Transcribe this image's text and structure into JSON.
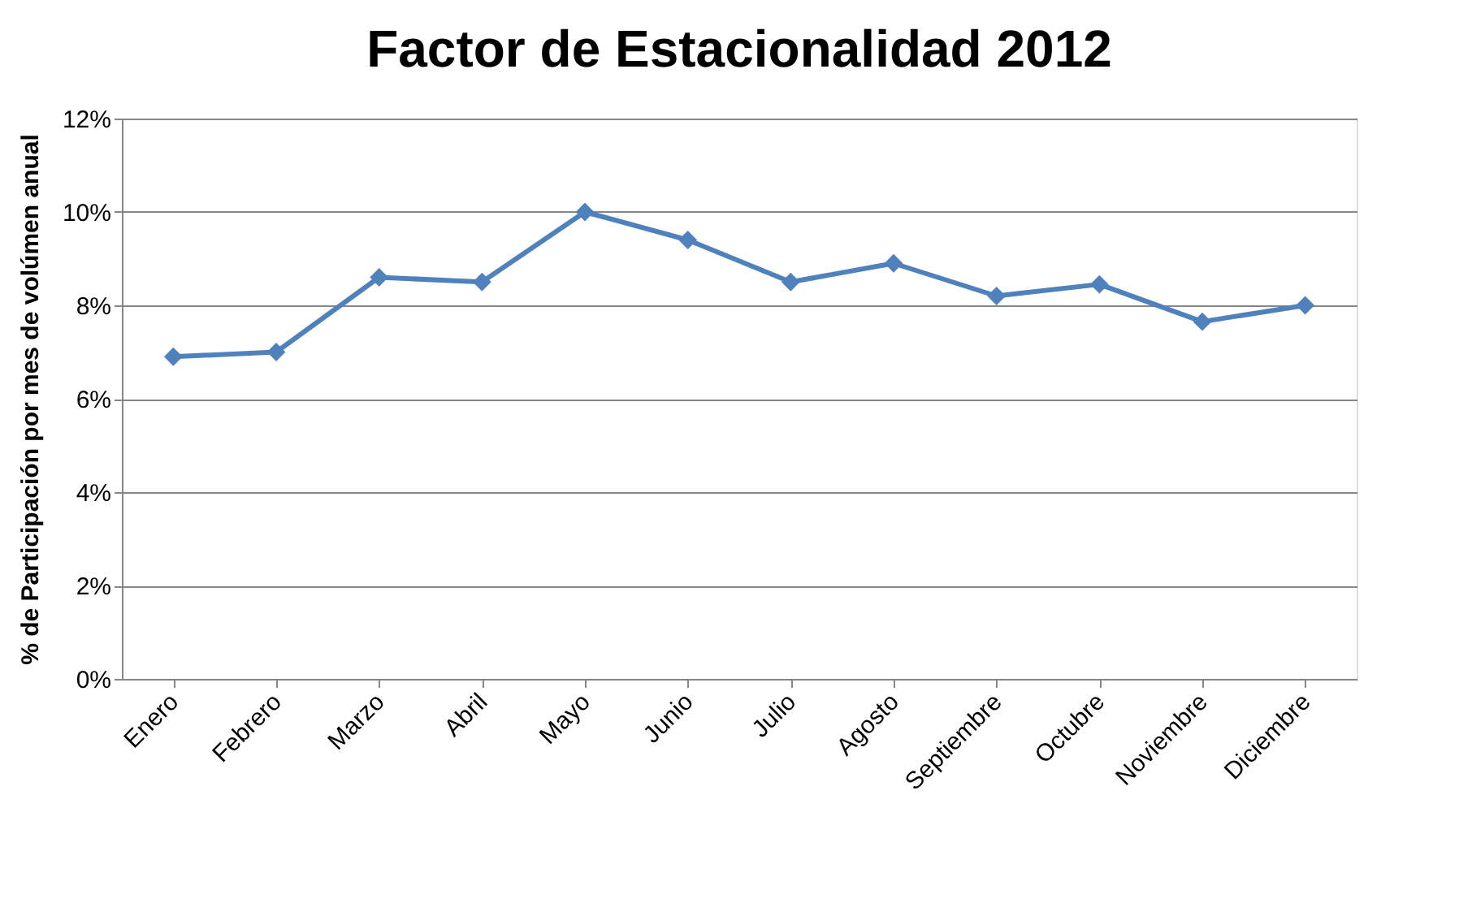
{
  "chart_data": {
    "type": "line",
    "title": "Factor de Estacionalidad 2012",
    "ylabel": "% de Participación por mes de volúmen anual",
    "categories": [
      "Enero",
      "Febrero",
      "Marzo",
      "Abril",
      "Mayo",
      "Junio",
      "Julio",
      "Agosto",
      "Septiembre",
      "Octubre",
      "Noviembre",
      "Diciembre"
    ],
    "series": [
      {
        "color": "#4f81bd",
        "values": [
          6.9,
          7.0,
          8.6,
          8.5,
          10.0,
          9.4,
          8.5,
          8.9,
          8.2,
          8.45,
          7.65,
          8.0
        ]
      }
    ],
    "ylim": [
      0,
      12
    ],
    "yticks": [
      {
        "value": 0,
        "label": "0%"
      },
      {
        "value": 2,
        "label": "2%"
      },
      {
        "value": 4,
        "label": "4%"
      },
      {
        "value": 6,
        "label": "6%"
      },
      {
        "value": 8,
        "label": "8%"
      },
      {
        "value": 10,
        "label": "10%"
      },
      {
        "value": 12,
        "label": "12%"
      }
    ],
    "grid": "y",
    "marker": "diamond",
    "line_style": "solid"
  }
}
